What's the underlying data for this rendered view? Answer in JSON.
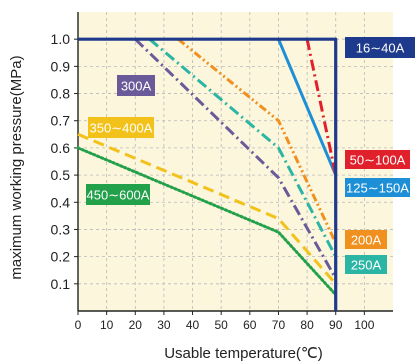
{
  "chart_data": {
    "type": "line",
    "xlabel": "Usable temperature(℃)",
    "ylabel": "maximum working pressure(MPa)",
    "xlim": [
      0,
      110
    ],
    "ylim": [
      0,
      1.1
    ],
    "x_ticks": [
      "0",
      "10",
      "20",
      "30",
      "40",
      "50",
      "60",
      "70",
      "80",
      "90",
      "100"
    ],
    "y_ticks": [
      "0.1",
      "0.2",
      "0.3",
      "0.4",
      "0.5",
      "0.6",
      "0.7",
      "0.8",
      "0.9",
      "1.0"
    ],
    "grid": true,
    "background": "#fbf6dc",
    "series": [
      {
        "name": "16∼40A",
        "color": "#1e3a8c",
        "style": "solid",
        "x": [
          0,
          90,
          90
        ],
        "y": [
          1.0,
          1.0,
          0
        ]
      },
      {
        "name": "50∼100A",
        "color": "#e0202b",
        "style": "dashdot",
        "x": [
          80,
          90
        ],
        "y": [
          1.0,
          0.5
        ]
      },
      {
        "name": "125∼150A",
        "color": "#1d8fd6",
        "style": "solid",
        "x": [
          70,
          90
        ],
        "y": [
          1.0,
          0.5
        ]
      },
      {
        "name": "200A",
        "color": "#f0901e",
        "style": "dashdotdot",
        "x": [
          35,
          70,
          90
        ],
        "y": [
          1.0,
          0.7,
          0.25
        ]
      },
      {
        "name": "250A",
        "color": "#2bb5a5",
        "style": "dashdot",
        "x": [
          25,
          70,
          90
        ],
        "y": [
          1.0,
          0.6,
          0.2
        ]
      },
      {
        "name": "300A",
        "color": "#6a5a9a",
        "style": "dashdot",
        "x": [
          20,
          70,
          90
        ],
        "y": [
          1.0,
          0.49,
          0.12
        ]
      },
      {
        "name": "350∼400A",
        "color": "#f2c11a",
        "style": "dashed",
        "x": [
          0,
          70,
          90
        ],
        "y": [
          0.65,
          0.34,
          0.1
        ]
      },
      {
        "name": "450∼600A",
        "color": "#22a04a",
        "style": "dotted",
        "x": [
          0,
          70,
          90
        ],
        "y": [
          0.6,
          0.29,
          0.06
        ]
      }
    ],
    "annotations": [
      {
        "text": "300A",
        "color": "#6a5a9a",
        "position": "left-middle"
      },
      {
        "text": "350∼400A",
        "color": "#f2c11a",
        "position": "left"
      },
      {
        "text": "450∼600A",
        "color": "#22a04a",
        "position": "left-lower"
      },
      {
        "text": "16∼40A",
        "color": "#1e3a8c",
        "position": "right-top"
      },
      {
        "text": "50∼100A",
        "color": "#e0202b",
        "position": "right"
      },
      {
        "text": "125∼150A",
        "color": "#1d8fd6",
        "position": "right"
      },
      {
        "text": "200A",
        "color": "#f0901e",
        "position": "right-lower"
      },
      {
        "text": "250A",
        "color": "#2bb5a5",
        "position": "right-lower"
      }
    ]
  }
}
